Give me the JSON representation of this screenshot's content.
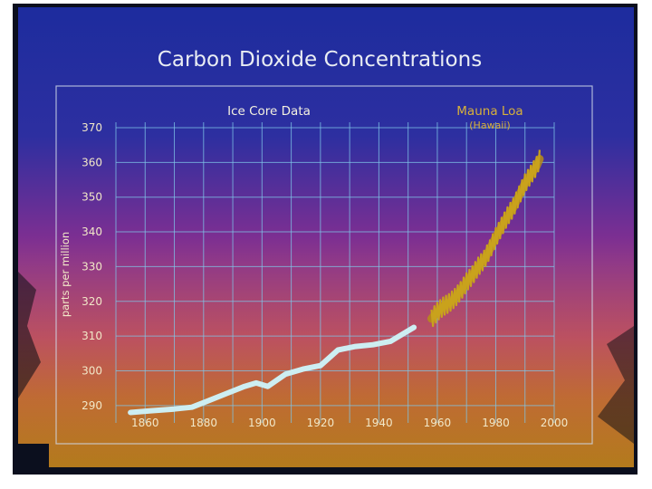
{
  "chart_data": {
    "type": "line",
    "title": "Carbon Dioxide Concentrations",
    "ylabel": "parts per million",
    "xlabel": "",
    "xlim": [
      1850,
      2000
    ],
    "ylim": [
      285,
      370
    ],
    "xticks": [
      1860,
      1880,
      1900,
      1920,
      1940,
      1960,
      1980,
      2000
    ],
    "yticks": [
      290,
      300,
      310,
      320,
      330,
      340,
      350,
      360,
      370
    ],
    "grid": true,
    "series": [
      {
        "name": "Ice Core Data",
        "color": "#cdeef2",
        "x": [
          1855,
          1862,
          1870,
          1876,
          1882,
          1888,
          1894,
          1898,
          1902,
          1908,
          1914,
          1920,
          1926,
          1932,
          1938,
          1944,
          1948,
          1952
        ],
        "y": [
          288,
          288.5,
          289,
          289.5,
          291.5,
          293.5,
          295.5,
          296.5,
          295.5,
          299,
          300.5,
          301.5,
          306,
          307,
          307.5,
          308.5,
          310.5,
          312.5
        ]
      },
      {
        "name": "Mauna Loa",
        "subtitle": "(Hawaii)",
        "color": "#c9a21c",
        "x": [
          1958,
          1960,
          1962,
          1964,
          1966,
          1968,
          1970,
          1972,
          1974,
          1976,
          1978,
          1980,
          1982,
          1984,
          1986,
          1988,
          1990,
          1992,
          1994,
          1995
        ],
        "y": [
          315,
          317,
          318.5,
          319.5,
          321,
          323,
          325.5,
          327.5,
          330,
          332,
          335,
          338.5,
          341.5,
          344.5,
          347,
          350.5,
          354,
          356.5,
          359,
          361
        ]
      }
    ]
  },
  "colors": {
    "frame_outer": "#0b0f1e",
    "gradient_top": "#1d2ea6",
    "gradient_mid": "#7a2f93",
    "gradient_low": "#d8604e",
    "gradient_bottom": "#e39a22",
    "grid": "#7fc6e8",
    "label_text": "#f2e8c8"
  }
}
